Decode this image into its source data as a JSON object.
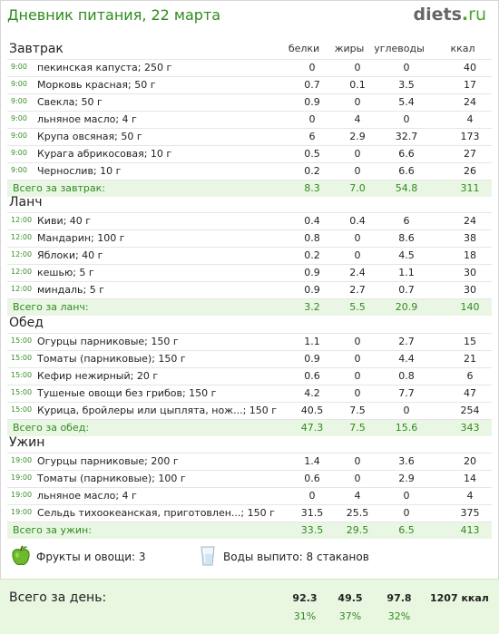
{
  "header": {
    "title": "Дневник питания, 22 марта",
    "logo_main": "diets",
    "logo_dot": ".",
    "logo_tld": "ru"
  },
  "columns": {
    "protein": "белки",
    "fat": "жиры",
    "carbs": "углеводы",
    "kcal": "ккал"
  },
  "meals": [
    {
      "name": "Завтрак",
      "items": [
        {
          "time": "9:00",
          "name": "пекинская капуста; 250 г",
          "protein": "0",
          "fat": "0",
          "carbs": "0",
          "kcal": "40"
        },
        {
          "time": "9:00",
          "name": "Морковь красная; 50 г",
          "protein": "0.7",
          "fat": "0.1",
          "carbs": "3.5",
          "kcal": "17"
        },
        {
          "time": "9:00",
          "name": "Свекла; 50 г",
          "protein": "0.9",
          "fat": "0",
          "carbs": "5.4",
          "kcal": "24"
        },
        {
          "time": "9:00",
          "name": "льняное масло; 4 г",
          "protein": "0",
          "fat": "4",
          "carbs": "0",
          "kcal": "4"
        },
        {
          "time": "9:00",
          "name": "Крупа овсяная; 50 г",
          "protein": "6",
          "fat": "2.9",
          "carbs": "32.7",
          "kcal": "173"
        },
        {
          "time": "9:00",
          "name": "Курага абрикосовая; 10 г",
          "protein": "0.5",
          "fat": "0",
          "carbs": "6.6",
          "kcal": "27"
        },
        {
          "time": "9:00",
          "name": "Чернослив; 10 г",
          "protein": "0.2",
          "fat": "0",
          "carbs": "6.6",
          "kcal": "26"
        }
      ],
      "total": {
        "label": "Всего за завтрак:",
        "protein": "8.3",
        "fat": "7.0",
        "carbs": "54.8",
        "kcal": "311"
      }
    },
    {
      "name": "Ланч",
      "items": [
        {
          "time": "12:00",
          "name": "Киви; 40 г",
          "protein": "0.4",
          "fat": "0.4",
          "carbs": "6",
          "kcal": "24"
        },
        {
          "time": "12:00",
          "name": "Мандарин; 100 г",
          "protein": "0.8",
          "fat": "0",
          "carbs": "8.6",
          "kcal": "38"
        },
        {
          "time": "12:00",
          "name": "Яблоки; 40 г",
          "protein": "0.2",
          "fat": "0",
          "carbs": "4.5",
          "kcal": "18"
        },
        {
          "time": "12:00",
          "name": "кешью; 5 г",
          "protein": "0.9",
          "fat": "2.4",
          "carbs": "1.1",
          "kcal": "30"
        },
        {
          "time": "12:00",
          "name": "миндаль; 5 г",
          "protein": "0.9",
          "fat": "2.7",
          "carbs": "0.7",
          "kcal": "30"
        }
      ],
      "total": {
        "label": "Всего за ланч:",
        "protein": "3.2",
        "fat": "5.5",
        "carbs": "20.9",
        "kcal": "140"
      }
    },
    {
      "name": "Обед",
      "items": [
        {
          "time": "15:00",
          "name": "Огурцы парниковые; 150 г",
          "protein": "1.1",
          "fat": "0",
          "carbs": "2.7",
          "kcal": "15"
        },
        {
          "time": "15:00",
          "name": "Томаты (парниковые); 150 г",
          "protein": "0.9",
          "fat": "0",
          "carbs": "4.4",
          "kcal": "21"
        },
        {
          "time": "15:00",
          "name": "Кефир нежирный; 20 г",
          "protein": "0.6",
          "fat": "0",
          "carbs": "0.8",
          "kcal": "6"
        },
        {
          "time": "15:00",
          "name": "Тушеные овощи без грибов; 150 г",
          "protein": "4.2",
          "fat": "0",
          "carbs": "7.7",
          "kcal": "47"
        },
        {
          "time": "15:00",
          "name": "Курица, бройлеры или цыплята, нож...; 150 г",
          "protein": "40.5",
          "fat": "7.5",
          "carbs": "0",
          "kcal": "254"
        }
      ],
      "total": {
        "label": "Всего за обед:",
        "protein": "47.3",
        "fat": "7.5",
        "carbs": "15.6",
        "kcal": "343"
      }
    },
    {
      "name": "Ужин",
      "items": [
        {
          "time": "19:00",
          "name": "Огурцы парниковые; 200 г",
          "protein": "1.4",
          "fat": "0",
          "carbs": "3.6",
          "kcal": "20"
        },
        {
          "time": "19:00",
          "name": "Томаты (парниковые); 100 г",
          "protein": "0.6",
          "fat": "0",
          "carbs": "2.9",
          "kcal": "14"
        },
        {
          "time": "19:00",
          "name": "льняное масло; 4 г",
          "protein": "0",
          "fat": "4",
          "carbs": "0",
          "kcal": "4"
        },
        {
          "time": "19:00",
          "name": "Сельдь тихоокеанская, приготовлен...; 150 г",
          "protein": "31.5",
          "fat": "25.5",
          "carbs": "0",
          "kcal": "375"
        }
      ],
      "total": {
        "label": "Всего за ужин:",
        "protein": "33.5",
        "fat": "29.5",
        "carbs": "6.5",
        "kcal": "413"
      }
    }
  ],
  "extras": {
    "fruits_label": "Фрукты и овощи: 3",
    "water_label": "Воды выпито: 8 стаканов"
  },
  "day_total": {
    "label": "Всего за день:",
    "protein": "92.3",
    "fat": "49.5",
    "carbs": "97.8",
    "kcal": "1207 ккал",
    "protein_pct": "31%",
    "fat_pct": "37%",
    "carbs_pct": "32%"
  },
  "icons": {
    "fruits": "green-apple-icon",
    "water": "water-glass-icon"
  },
  "colors": {
    "accent": "#2e8b1e",
    "total_bg": "#eaf6e4"
  }
}
